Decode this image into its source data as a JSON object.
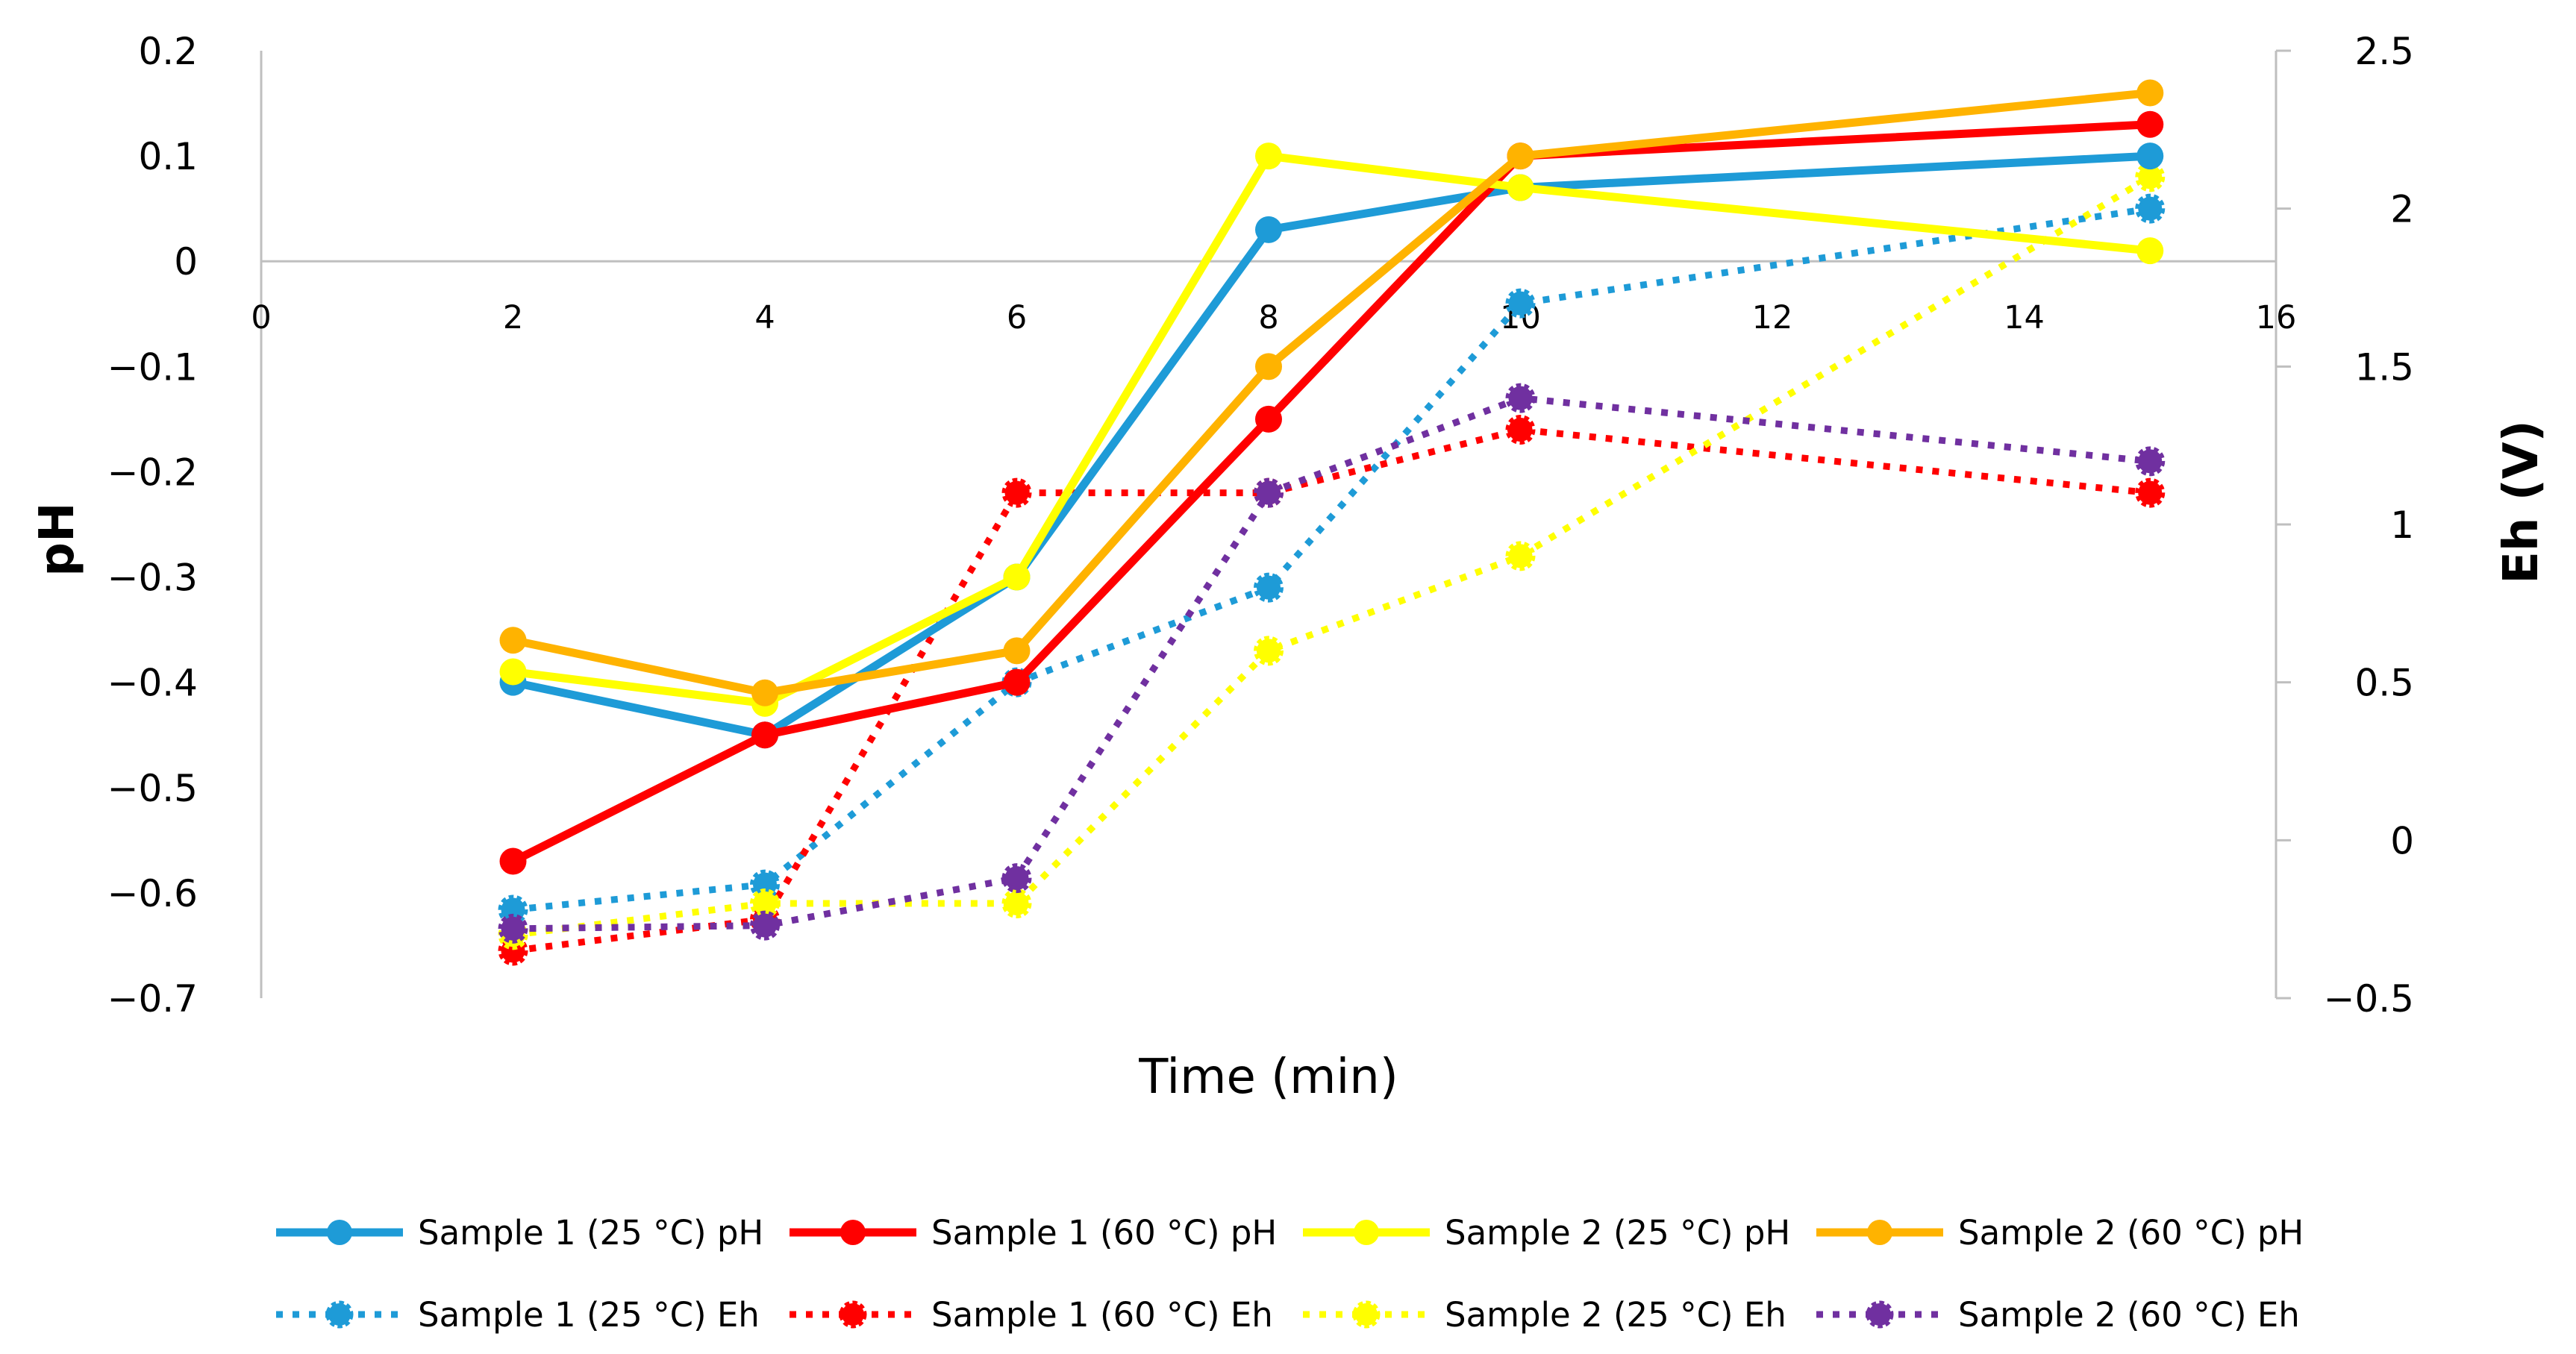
{
  "chart_data": {
    "type": "line",
    "xlabel": "Time (min)",
    "ylabel": "pH",
    "y2label": "Eh (V)",
    "xlim": [
      0,
      16
    ],
    "ylim": [
      -0.7,
      0.2
    ],
    "y2lim": [
      -0.5,
      2.5
    ],
    "x_ticks": [
      "0",
      "2",
      "4",
      "6",
      "8",
      "10",
      "12",
      "14",
      "16"
    ],
    "y_ticks": [
      "0.2",
      "0.1",
      "0",
      "−0.1",
      "−0.2",
      "−0.3",
      "−0.4",
      "−0.5",
      "−0.6",
      "−0.7"
    ],
    "y2_ticks": [
      "2.5",
      "2",
      "1.5",
      "1",
      "0.5",
      "0",
      "−0.5"
    ],
    "legend_position": "bottom",
    "grid": false,
    "series": [
      {
        "name": "Sample 1 (25 °C) pH",
        "axis": "left",
        "style": "solid",
        "color": "#1E9BD7",
        "x": [
          2,
          4,
          6,
          8,
          10,
          15
        ],
        "values": [
          -0.4,
          -0.45,
          -0.3,
          0.03,
          0.07,
          0.1
        ]
      },
      {
        "name": "Sample 1 (60 °C) pH",
        "axis": "left",
        "style": "solid",
        "color": "#FF0000",
        "x": [
          2,
          4,
          6,
          8,
          10,
          15
        ],
        "values": [
          -0.57,
          -0.45,
          -0.4,
          -0.15,
          0.1,
          0.13
        ]
      },
      {
        "name": "Sample 2 (25 °C) pH",
        "axis": "left",
        "style": "solid",
        "color": "#FFFF00",
        "x": [
          2,
          4,
          6,
          8,
          10,
          15
        ],
        "values": [
          -0.39,
          -0.42,
          -0.3,
          0.1,
          0.07,
          0.01
        ]
      },
      {
        "name": "Sample 2 (60 °C) pH",
        "axis": "left",
        "style": "solid",
        "color": "#FFB300",
        "x": [
          2,
          4,
          6,
          8,
          10,
          15
        ],
        "values": [
          -0.36,
          -0.41,
          -0.37,
          -0.1,
          0.1,
          0.16
        ]
      },
      {
        "name": "Sample 1 (25 °C) Eh",
        "axis": "right",
        "style": "dotted",
        "color": "#1E9BD7",
        "x": [
          2,
          4,
          6,
          8,
          10,
          15
        ],
        "values": [
          -0.22,
          -0.14,
          0.5,
          0.8,
          1.7,
          2.0
        ]
      },
      {
        "name": "Sample 1 (60 °C) Eh",
        "axis": "right",
        "style": "dotted",
        "color": "#FF0000",
        "x": [
          2,
          4,
          6,
          8,
          10,
          15
        ],
        "values": [
          -0.35,
          -0.25,
          1.1,
          1.1,
          1.3,
          1.1
        ]
      },
      {
        "name": "Sample 2 (25 °C) Eh",
        "axis": "right",
        "style": "dotted",
        "color": "#FFFF00",
        "x": [
          2,
          4,
          6,
          8,
          10,
          15
        ],
        "values": [
          -0.3,
          -0.2,
          -0.2,
          0.6,
          0.9,
          2.1
        ]
      },
      {
        "name": "Sample 2 (60 °C) Eh",
        "axis": "right",
        "style": "dotted",
        "color": "#7030A0",
        "x": [
          2,
          4,
          6,
          8,
          10,
          15
        ],
        "values": [
          -0.28,
          -0.27,
          -0.12,
          1.1,
          1.4,
          1.2
        ]
      }
    ]
  }
}
